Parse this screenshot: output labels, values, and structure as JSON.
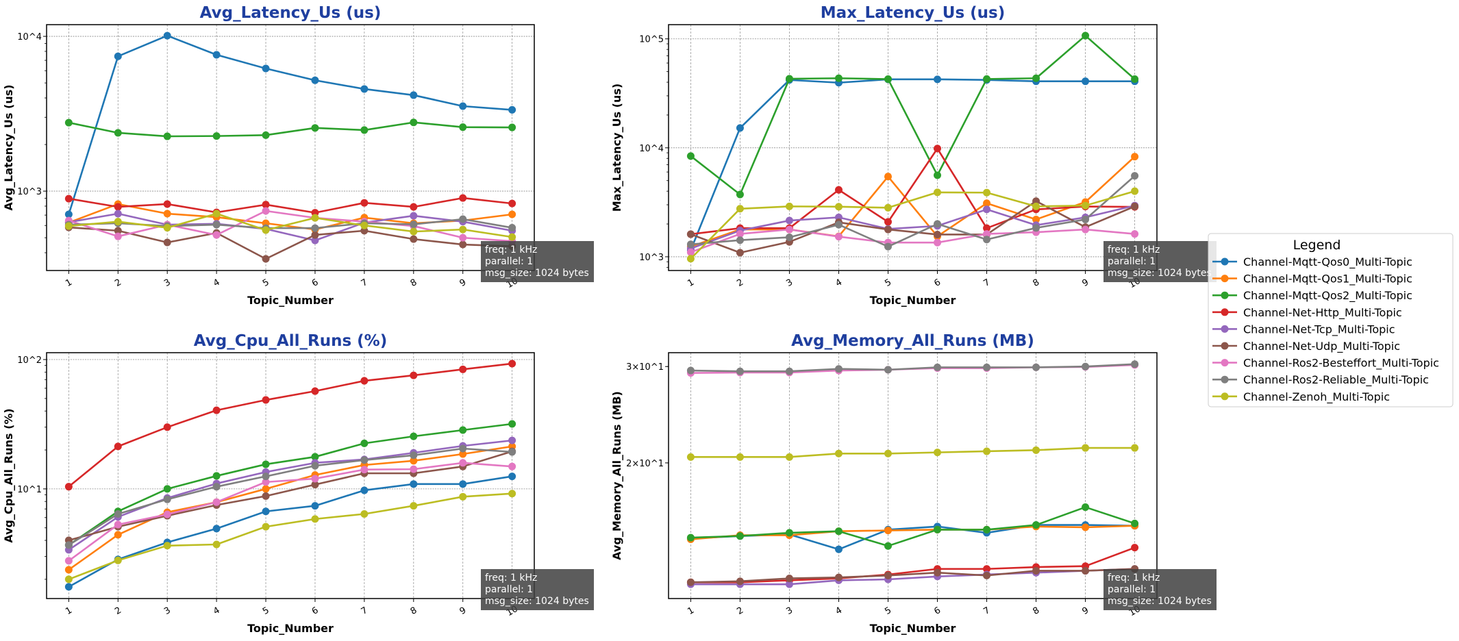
{
  "legend": {
    "title": "Legend",
    "placement": "right"
  },
  "colors": [
    "#1f77b4",
    "#ff7f0e",
    "#2ca02c",
    "#d62728",
    "#9467bd",
    "#8c564b",
    "#e377c2",
    "#7f7f7f",
    "#bcbd22"
  ],
  "annotation": [
    "freq: 1 kHz",
    "parallel: 1",
    "msg_size: 1024 bytes"
  ],
  "chart_data": [
    {
      "type": "line",
      "title": "Avg_Latency_Us  (us)",
      "xlabel": "Topic_Number",
      "ylabel": "Avg_Latency_Us (us)",
      "yscale": "log",
      "ylim": [
        307,
        11900
      ],
      "xlim": [
        0.55,
        10.45
      ],
      "grid": true,
      "yticks": [
        {
          "value": 1000,
          "label": "10^3"
        },
        {
          "value": 10000,
          "label": "10^4"
        }
      ],
      "x": [
        1,
        2,
        3,
        4,
        5,
        6,
        7,
        8,
        9,
        10
      ],
      "series": [
        {
          "name": "Channel-Mqtt-Qos0_Multi-Topic",
          "values": [
            708,
            7430,
            10100,
            7600,
            6200,
            5200,
            4570,
            4170,
            3540,
            3350
          ]
        },
        {
          "name": "Channel-Mqtt-Qos1_Multi-Topic",
          "values": [
            626,
            825,
            715,
            679,
            620,
            565,
            674,
            620,
            645,
            708
          ]
        },
        {
          "name": "Channel-Mqtt-Qos2_Multi-Topic",
          "values": [
            2770,
            2380,
            2260,
            2270,
            2300,
            2560,
            2480,
            2780,
            2590,
            2580
          ]
        },
        {
          "name": "Channel-Net-Http_Multi-Topic",
          "values": [
            894,
            791,
            825,
            729,
            818,
            725,
            840,
            791,
            903,
            832
          ]
        },
        {
          "name": "Channel-Net-Tcp_Multi-Topic",
          "values": [
            630,
            715,
            607,
            615,
            570,
            480,
            626,
            693,
            635,
            555
          ]
        },
        {
          "name": "Channel-Net-Udp_Multi-Topic",
          "values": [
            583,
            555,
            466,
            537,
            365,
            521,
            555,
            490,
            452,
            440
          ]
        },
        {
          "name": "Channel-Ros2-Besteffort_Multi-Topic",
          "values": [
            645,
            510,
            607,
            521,
            745,
            672,
            635,
            595,
            500,
            475
          ]
        },
        {
          "name": "Channel-Ros2-Reliable_Multi-Topic",
          "values": [
            607,
            620,
            595,
            607,
            577,
            577,
            620,
            610,
            659,
            580
          ]
        },
        {
          "name": "Channel-Zenoh_Multi-Topic",
          "values": [
            595,
            635,
            580,
            715,
            560,
            672,
            600,
            548,
            565,
            505
          ]
        }
      ]
    },
    {
      "type": "line",
      "title": "Max_Latency_Us  (us)",
      "xlabel": "Topic_Number",
      "ylabel": "Max_Latency_Us (us)",
      "yscale": "log",
      "ylim": [
        748,
        135000
      ],
      "xlim": [
        0.55,
        10.45
      ],
      "grid": true,
      "yticks": [
        {
          "value": 1000,
          "label": "10^3"
        },
        {
          "value": 10000,
          "label": "10^4"
        },
        {
          "value": 100000,
          "label": "10^5"
        }
      ],
      "x": [
        1,
        2,
        3,
        4,
        5,
        6,
        7,
        8,
        9,
        10
      ],
      "series": [
        {
          "name": "Channel-Mqtt-Qos0_Multi-Topic",
          "values": [
            1150,
            15200,
            42000,
            39600,
            42500,
            42500,
            42000,
            40800,
            40800,
            40800
          ]
        },
        {
          "name": "Channel-Mqtt-Qos1_Multi-Topic",
          "values": [
            1240,
            1780,
            1780,
            1540,
            5450,
            1540,
            3100,
            2200,
            3180,
            8300
          ]
        },
        {
          "name": "Channel-Mqtt-Qos2_Multi-Topic",
          "values": [
            8400,
            3730,
            43000,
            43500,
            42700,
            5600,
            42800,
            43500,
            107000,
            42700
          ]
        },
        {
          "name": "Channel-Net-Http_Multi-Topic",
          "values": [
            1610,
            1830,
            1830,
            4110,
            2090,
            9850,
            1830,
            2720,
            2890,
            2870
          ]
        },
        {
          "name": "Channel-Net-Tcp_Multi-Topic",
          "values": [
            1190,
            1740,
            2150,
            2300,
            1800,
            1920,
            2720,
            1950,
            2300,
            2950
          ]
        },
        {
          "name": "Channel-Net-Udp_Multi-Topic",
          "values": [
            1610,
            1090,
            1370,
            2070,
            1780,
            1600,
            1600,
            3240,
            1870,
            2900
          ]
        },
        {
          "name": "Channel-Ros2-Besteffort_Multi-Topic",
          "values": [
            1100,
            1620,
            1780,
            1530,
            1350,
            1350,
            1620,
            1680,
            1780,
            1620
          ]
        },
        {
          "name": "Channel-Ros2-Reliable_Multi-Topic",
          "values": [
            1300,
            1420,
            1510,
            1970,
            1240,
            2000,
            1440,
            1840,
            2200,
            5530
          ]
        },
        {
          "name": "Channel-Zenoh_Multi-Topic",
          "values": [
            960,
            2760,
            2900,
            2880,
            2820,
            3900,
            3880,
            2900,
            2950,
            4000
          ]
        }
      ]
    },
    {
      "type": "line",
      "title": "Avg_Cpu_All_Runs  (%)",
      "xlabel": "Topic_Number",
      "ylabel": "Avg_Cpu_All_Runs (%)",
      "yscale": "log",
      "ylim": [
        1.42,
        113
      ],
      "xlim": [
        0.55,
        10.45
      ],
      "grid": true,
      "yticks": [
        {
          "value": 10,
          "label": "10^1"
        },
        {
          "value": 100,
          "label": "10^2"
        }
      ],
      "x": [
        1,
        2,
        3,
        4,
        5,
        6,
        7,
        8,
        9,
        10
      ],
      "series": [
        {
          "name": "Channel-Mqtt-Qos0_Multi-Topic",
          "values": [
            1.75,
            2.85,
            3.86,
            4.93,
            6.7,
            7.4,
            9.75,
            10.9,
            10.9,
            12.5
          ]
        },
        {
          "name": "Channel-Mqtt-Qos1_Multi-Topic",
          "values": [
            2.37,
            4.42,
            6.6,
            7.9,
            10,
            12.8,
            15.3,
            16.5,
            18.6,
            21.3
          ]
        },
        {
          "name": "Channel-Mqtt-Qos2_Multi-Topic",
          "values": [
            3.68,
            6.7,
            10,
            12.6,
            15.5,
            17.7,
            22.5,
            25.5,
            28.5,
            31.8
          ]
        },
        {
          "name": "Channel-Net-Http_Multi-Topic",
          "values": [
            10.4,
            21.3,
            30,
            40.5,
            48.7,
            57,
            68.5,
            75.5,
            84,
            93
          ]
        },
        {
          "name": "Channel-Net-Tcp_Multi-Topic",
          "values": [
            3.38,
            6.07,
            8.5,
            11,
            13.5,
            15.9,
            16.9,
            19,
            21.5,
            23.7
          ]
        },
        {
          "name": "Channel-Net-Udp_Multi-Topic",
          "values": [
            4.0,
            5.1,
            6.2,
            7.5,
            8.8,
            10.8,
            13.2,
            13.2,
            14.9,
            19.5
          ]
        },
        {
          "name": "Channel-Ros2-Besteffort_Multi-Topic",
          "values": [
            2.78,
            5.3,
            6.35,
            7.9,
            11.3,
            12.0,
            14.1,
            14.2,
            15.9,
            14.9
          ]
        },
        {
          "name": "Channel-Ros2-Reliable_Multi-Topic",
          "values": [
            3.68,
            6.4,
            8.3,
            10.4,
            12.5,
            15.1,
            16.7,
            18.2,
            20.5,
            19.3
          ]
        },
        {
          "name": "Channel-Zenoh_Multi-Topic",
          "values": [
            2.0,
            2.8,
            3.64,
            3.72,
            5.1,
            5.85,
            6.4,
            7.4,
            8.7,
            9.2
          ]
        }
      ]
    },
    {
      "type": "line",
      "title": "Avg_Memory_All_Runs  (MB)",
      "xlabel": "Topic_Number",
      "ylabel": "Avg_Memory_All_Runs (MB)",
      "yscale": "log",
      "ylim": [
        11.3,
        31.8
      ],
      "xlim": [
        0.55,
        10.45
      ],
      "grid": true,
      "yticks": [
        {
          "value": 20,
          "label": "2×10^1"
        },
        {
          "value": 30,
          "label": "3×10^1"
        }
      ],
      "x": [
        1,
        2,
        3,
        4,
        5,
        6,
        7,
        8,
        9,
        10
      ],
      "series": [
        {
          "name": "Channel-Mqtt-Qos0_Multi-Topic",
          "values": [
            14.55,
            14.7,
            14.8,
            13.9,
            15.1,
            15.3,
            14.9,
            15.4,
            15.4,
            15.35
          ]
        },
        {
          "name": "Channel-Mqtt-Qos1_Multi-Topic",
          "values": [
            14.5,
            14.75,
            14.75,
            15.0,
            15.05,
            15.1,
            15.1,
            15.3,
            15.25,
            15.35
          ]
        },
        {
          "name": "Channel-Mqtt-Qos2_Multi-Topic",
          "values": [
            14.6,
            14.7,
            14.9,
            15.0,
            14.1,
            15.1,
            15.1,
            15.4,
            16.6,
            15.5
          ]
        },
        {
          "name": "Channel-Net-Http_Multi-Topic",
          "values": [
            12.1,
            12.1,
            12.2,
            12.3,
            12.5,
            12.8,
            12.8,
            12.9,
            12.95,
            14.0
          ]
        },
        {
          "name": "Channel-Net-Tcp_Multi-Topic",
          "values": [
            12.0,
            12.0,
            12.0,
            12.2,
            12.25,
            12.4,
            12.5,
            12.6,
            12.7,
            12.8
          ]
        },
        {
          "name": "Channel-Net-Udp_Multi-Topic",
          "values": [
            12.1,
            12.15,
            12.3,
            12.35,
            12.45,
            12.6,
            12.45,
            12.7,
            12.7,
            12.8
          ]
        },
        {
          "name": "Channel-Ros2-Besteffort_Multi-Topic",
          "values": [
            29.2,
            29.25,
            29.25,
            29.5,
            29.6,
            29.8,
            29.8,
            29.9,
            29.95,
            30.2
          ]
        },
        {
          "name": "Channel-Ros2-Reliable_Multi-Topic",
          "values": [
            29.5,
            29.4,
            29.4,
            29.7,
            29.6,
            29.9,
            29.9,
            29.9,
            30.0,
            30.3
          ]
        },
        {
          "name": "Channel-Zenoh_Multi-Topic",
          "values": [
            20.5,
            20.5,
            20.5,
            20.8,
            20.8,
            20.9,
            21.0,
            21.1,
            21.3,
            21.3
          ]
        }
      ]
    }
  ]
}
